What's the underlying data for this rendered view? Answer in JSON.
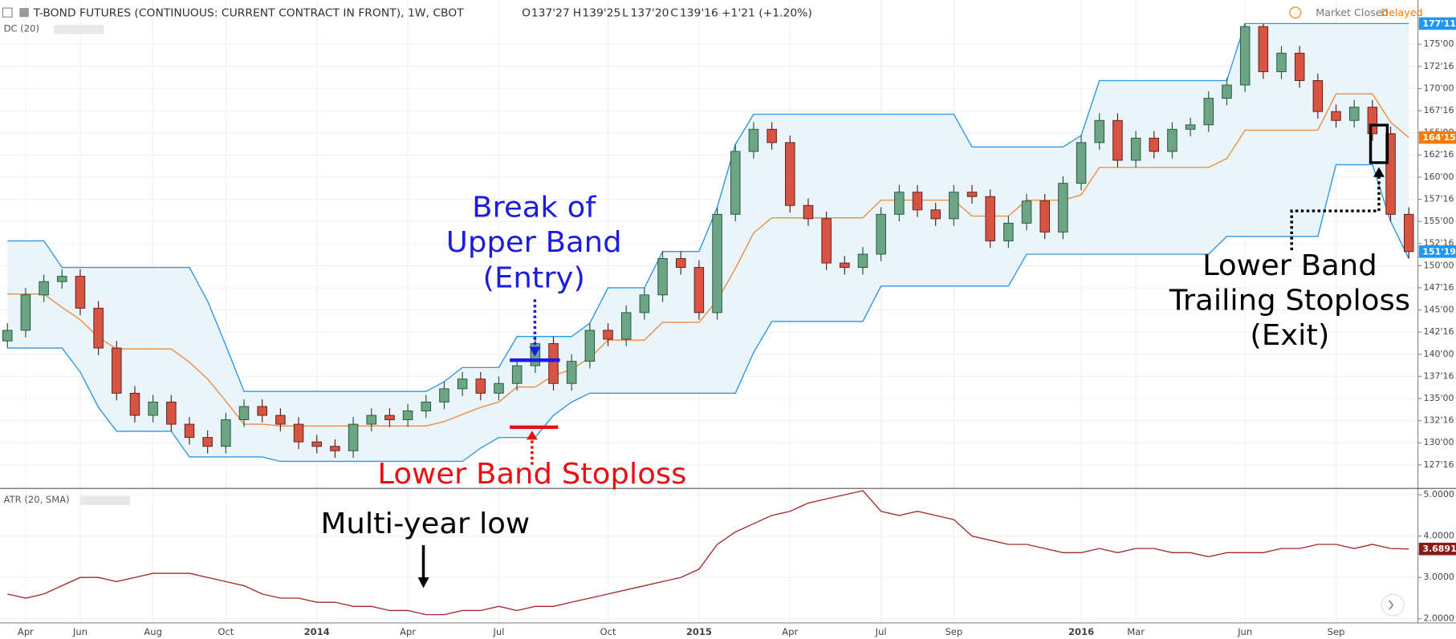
{
  "header": {
    "title": "T-BOND FUTURES (CONTINUOUS: CURRENT CONTRACT IN FRONT), 1W, CBOT",
    "ohlc": [
      {
        "key": "O",
        "value": "137'27"
      },
      {
        "key": "H",
        "value": "139'25"
      },
      {
        "key": "L",
        "value": "137'20"
      },
      {
        "key": "C",
        "value": "139'16"
      }
    ],
    "change": "+1'21 (+1.20%)",
    "status": "Market Closed",
    "feed": "Delayed",
    "indicator": "DC (20)",
    "atr_indicator": "ATR (20, SMA)"
  },
  "annotations": {
    "entry": [
      "Break of",
      "Upper Band",
      "(Entry)"
    ],
    "stop": "Lower Band Stoploss",
    "low": "Multi-year low",
    "exit": [
      "Lower Band",
      "Trailing Stoploss",
      "(Exit)"
    ]
  },
  "chart_data": [
    {
      "type": "candlestick",
      "categories": [
        null,
        "Apr",
        null,
        null,
        "Jun",
        null,
        null,
        null,
        "Aug",
        null,
        null,
        null,
        "Oct",
        null,
        null,
        null,
        null,
        "2014",
        null,
        null,
        null,
        null,
        "Apr",
        null,
        null,
        null,
        null,
        "Jul",
        null,
        null,
        null,
        null,
        null,
        "Oct",
        null,
        null,
        null,
        null,
        "2015",
        null,
        null,
        null,
        null,
        "Apr",
        null,
        null,
        null,
        null,
        "Jul",
        null,
        null,
        null,
        "Sep",
        null,
        null,
        null,
        null,
        null,
        null,
        "2016",
        null,
        null,
        "Mar",
        null,
        null,
        null,
        null,
        null,
        "Jun",
        null,
        null,
        null,
        null,
        "Sep",
        null,
        null,
        null,
        null
      ],
      "open": [
        141.5,
        142.7,
        146.7,
        148.2,
        148.8,
        145.2,
        140.7,
        135.6,
        133.1,
        134.6,
        132.1,
        130.6,
        129.6,
        132.6,
        134.1,
        133.1,
        132.1,
        130.1,
        129.6,
        129.1,
        132.1,
        133.1,
        132.6,
        133.6,
        134.6,
        136.1,
        137.2,
        135.6,
        136.7,
        138.7,
        141.2,
        136.7,
        139.2,
        142.7,
        141.7,
        144.7,
        146.7,
        150.8,
        149.8,
        144.7,
        155.8,
        162.9,
        165.4,
        163.9,
        156.8,
        155.3,
        150.3,
        149.8,
        151.3,
        155.8,
        158.3,
        156.3,
        155.3,
        158.3,
        157.8,
        152.8,
        154.8,
        157.3,
        153.8,
        159.3,
        163.9,
        166.4,
        161.9,
        164.4,
        162.9,
        165.4,
        165.9,
        168.9,
        170.4,
        177.0,
        171.9,
        174.0,
        170.9,
        167.4,
        166.4,
        167.9,
        164.9,
        155.8
      ],
      "high": [
        143.5,
        147.5,
        149.0,
        149.6,
        149.6,
        146.0,
        141.5,
        136.4,
        135.4,
        135.4,
        132.9,
        131.4,
        133.4,
        134.9,
        134.9,
        133.9,
        132.9,
        130.9,
        130.4,
        132.9,
        133.9,
        133.9,
        134.4,
        135.4,
        136.9,
        138.0,
        138.0,
        137.5,
        139.5,
        142.0,
        142.0,
        140.0,
        143.5,
        143.5,
        145.5,
        147.5,
        151.6,
        151.6,
        150.6,
        156.6,
        163.7,
        166.2,
        166.2,
        164.7,
        157.6,
        156.1,
        151.1,
        152.1,
        156.6,
        159.1,
        159.1,
        157.1,
        159.1,
        159.1,
        158.6,
        155.6,
        158.1,
        158.1,
        160.1,
        164.7,
        167.2,
        167.2,
        165.2,
        165.2,
        166.2,
        166.7,
        169.7,
        171.2,
        177.34,
        177.34,
        174.8,
        174.8,
        171.7,
        168.2,
        168.7,
        168.7,
        165.7,
        156.6
      ],
      "low": [
        140.7,
        141.9,
        145.9,
        147.4,
        144.4,
        139.9,
        134.8,
        132.3,
        132.3,
        131.3,
        129.8,
        128.8,
        128.8,
        131.8,
        132.3,
        131.3,
        129.3,
        128.8,
        128.3,
        128.3,
        131.3,
        131.8,
        131.8,
        132.8,
        133.8,
        135.3,
        134.8,
        134.8,
        135.9,
        137.9,
        135.9,
        135.9,
        138.4,
        140.9,
        140.9,
        143.9,
        145.9,
        149.0,
        143.9,
        143.9,
        155.0,
        162.1,
        163.1,
        156.0,
        154.5,
        149.5,
        149.0,
        149.0,
        150.5,
        155.0,
        155.5,
        154.5,
        154.5,
        157.0,
        152.0,
        152.0,
        154.0,
        153.0,
        153.0,
        158.5,
        163.1,
        161.1,
        161.1,
        162.1,
        162.1,
        164.6,
        165.1,
        168.1,
        169.6,
        171.1,
        171.1,
        170.1,
        166.6,
        165.6,
        165.6,
        164.1,
        155.0,
        150.8
      ],
      "close": [
        142.7,
        146.7,
        148.2,
        148.8,
        145.2,
        140.7,
        135.6,
        133.1,
        134.6,
        132.1,
        130.6,
        129.6,
        132.6,
        134.1,
        133.1,
        132.1,
        130.1,
        129.6,
        129.1,
        132.1,
        133.1,
        132.6,
        133.6,
        134.6,
        136.1,
        137.2,
        135.6,
        136.7,
        138.7,
        141.2,
        136.7,
        139.2,
        142.7,
        141.7,
        144.7,
        146.7,
        150.8,
        149.8,
        144.7,
        155.8,
        162.9,
        165.4,
        163.9,
        156.8,
        155.3,
        150.3,
        149.8,
        151.3,
        155.8,
        158.3,
        156.3,
        155.3,
        158.3,
        157.8,
        152.8,
        154.8,
        157.3,
        153.8,
        159.3,
        163.9,
        166.4,
        161.9,
        164.4,
        162.9,
        165.4,
        165.9,
        168.9,
        170.4,
        177.0,
        171.9,
        174.0,
        170.9,
        167.4,
        166.4,
        167.9,
        164.9,
        155.8,
        151.59
      ],
      "up_color": "#6ba583",
      "down_color": "#d75442",
      "band_fill": "#e8f4fb",
      "bands": [
        {
          "color": "#2f97e0",
          "values": [
            152.8,
            152.8,
            152.8,
            149.8,
            149.8,
            149.8,
            149.8,
            149.8,
            149.8,
            149.8,
            149.8,
            146.0,
            141.0,
            135.8,
            135.8,
            135.8,
            135.8,
            135.8,
            135.8,
            135.8,
            135.8,
            135.8,
            135.8,
            135.8,
            136.9,
            138.5,
            138.5,
            138.5,
            142.0,
            142.0,
            142.0,
            142.0,
            143.5,
            147.5,
            147.5,
            147.5,
            151.6,
            151.6,
            151.6,
            156.6,
            163.7,
            167.1,
            167.1,
            167.1,
            167.1,
            167.1,
            167.1,
            167.1,
            167.1,
            167.1,
            167.1,
            167.1,
            167.1,
            163.4,
            163.4,
            163.4,
            163.4,
            163.4,
            163.4,
            164.7,
            170.9,
            170.9,
            170.9,
            170.9,
            170.9,
            170.9,
            170.9,
            170.9,
            177.34,
            177.34,
            177.34,
            177.34,
            177.34,
            177.34,
            177.34,
            177.34,
            177.34,
            177.34
          ]
        },
        {
          "color": "#f08a3c",
          "values": [
            146.8,
            146.8,
            146.8,
            145.3,
            143.9,
            141.9,
            140.6,
            140.6,
            140.6,
            140.6,
            139.1,
            137.2,
            134.7,
            132.1,
            132.1,
            131.9,
            131.9,
            131.9,
            131.9,
            131.9,
            131.9,
            131.9,
            131.9,
            131.9,
            132.4,
            133.2,
            134.0,
            134.6,
            136.3,
            136.3,
            137.6,
            138.3,
            139.6,
            141.6,
            141.6,
            141.6,
            143.6,
            143.6,
            143.6,
            146.1,
            149.7,
            153.7,
            155.4,
            155.4,
            155.4,
            155.4,
            155.4,
            155.4,
            157.4,
            157.4,
            157.4,
            157.4,
            157.4,
            155.6,
            155.6,
            155.6,
            157.4,
            157.4,
            157.4,
            158.0,
            161.1,
            161.1,
            161.1,
            161.1,
            161.1,
            161.1,
            161.1,
            162.1,
            165.3,
            165.3,
            165.3,
            165.3,
            165.3,
            169.4,
            169.4,
            169.4,
            166.2,
            164.47
          ]
        },
        {
          "color": "#2f97e0",
          "values": [
            140.7,
            140.7,
            140.7,
            140.7,
            138.0,
            134.0,
            131.3,
            131.3,
            131.3,
            131.3,
            128.4,
            128.4,
            128.4,
            128.4,
            128.4,
            127.9,
            127.9,
            127.9,
            127.9,
            127.9,
            127.9,
            127.9,
            127.9,
            127.9,
            127.9,
            127.9,
            129.4,
            130.6,
            130.6,
            130.6,
            133.1,
            134.6,
            135.6,
            135.6,
            135.6,
            135.6,
            135.6,
            135.6,
            135.6,
            135.6,
            135.6,
            140.2,
            143.7,
            143.7,
            143.7,
            143.7,
            143.7,
            143.7,
            147.7,
            147.7,
            147.7,
            147.7,
            147.7,
            147.7,
            147.7,
            147.7,
            151.3,
            151.3,
            151.3,
            151.3,
            151.3,
            151.3,
            151.3,
            151.3,
            151.3,
            151.3,
            151.3,
            153.3,
            153.3,
            153.3,
            153.3,
            153.3,
            153.3,
            161.4,
            161.4,
            161.4,
            155.0,
            150.8
          ]
        }
      ],
      "ylim": [
        125,
        180
      ],
      "yticks": [
        {
          "value": 127.5,
          "label": "127'16"
        },
        {
          "value": 130,
          "label": "130'00"
        },
        {
          "value": 132.5,
          "label": "132'16"
        },
        {
          "value": 135,
          "label": "135'00"
        },
        {
          "value": 137.5,
          "label": "137'16"
        },
        {
          "value": 140,
          "label": "140'00"
        },
        {
          "value": 142.5,
          "label": "142'16"
        },
        {
          "value": 145,
          "label": "145'00"
        },
        {
          "value": 147.5,
          "label": "147'16"
        },
        {
          "value": 150,
          "label": "150'00"
        },
        {
          "value": 152.5,
          "label": "152'16"
        },
        {
          "value": 155,
          "label": "155'00"
        },
        {
          "value": 157.5,
          "label": "157'16"
        },
        {
          "value": 160,
          "label": "160'00"
        },
        {
          "value": 162.5,
          "label": "162'16"
        },
        {
          "value": 165,
          "label": "165'00"
        },
        {
          "value": 167.5,
          "label": "167'16"
        },
        {
          "value": 170,
          "label": "170'00"
        },
        {
          "value": 172.5,
          "label": "172'16"
        },
        {
          "value": 175,
          "label": "175'00"
        }
      ],
      "price_tags": [
        {
          "value": 177.34,
          "label": "177'11",
          "color": "#2196f3"
        },
        {
          "value": 164.47,
          "label": "164'15",
          "color": "#f57c00"
        },
        {
          "value": 151.59,
          "label": "151'19",
          "color": "#2196f3"
        }
      ],
      "grid": true
    },
    {
      "type": "line",
      "color": "#a52a2a",
      "values": [
        2.6,
        2.5,
        2.6,
        2.8,
        3.0,
        3.0,
        2.9,
        3.0,
        3.1,
        3.1,
        3.1,
        3.0,
        2.9,
        2.8,
        2.6,
        2.5,
        2.5,
        2.4,
        2.4,
        2.3,
        2.3,
        2.2,
        2.2,
        2.1,
        2.1,
        2.2,
        2.2,
        2.3,
        2.2,
        2.3,
        2.3,
        2.4,
        2.5,
        2.6,
        2.7,
        2.8,
        2.9,
        3.0,
        3.2,
        3.8,
        4.1,
        4.3,
        4.5,
        4.6,
        4.8,
        4.9,
        5.0,
        5.1,
        4.6,
        4.5,
        4.6,
        4.5,
        4.4,
        4.0,
        3.9,
        3.8,
        3.8,
        3.7,
        3.6,
        3.6,
        3.7,
        3.6,
        3.7,
        3.7,
        3.6,
        3.6,
        3.5,
        3.6,
        3.6,
        3.6,
        3.7,
        3.7,
        3.8,
        3.8,
        3.7,
        3.8,
        3.7,
        3.6891
      ],
      "ylim": [
        1.9,
        5.1
      ],
      "yticks": [
        {
          "value": 2,
          "label": "2.0000"
        },
        {
          "value": 3,
          "label": "3.0000"
        },
        {
          "value": 4,
          "label": "4.0000"
        },
        {
          "value": 5,
          "label": "5.0000"
        }
      ],
      "price_tags": [
        {
          "value": 3.6891,
          "label": "3.6891",
          "color": "#8b1a1a"
        }
      ],
      "grid": true
    }
  ]
}
